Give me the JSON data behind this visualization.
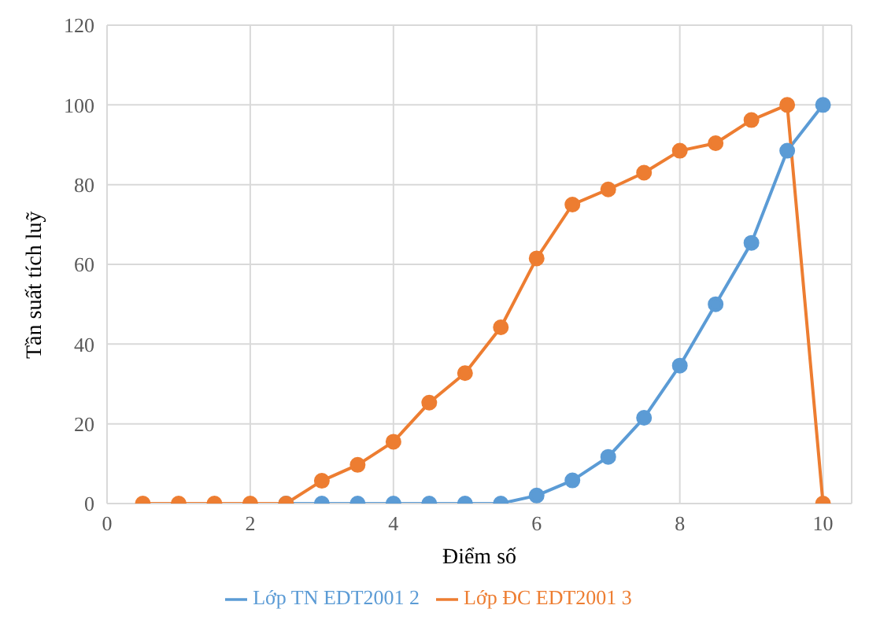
{
  "chart_data": {
    "type": "line",
    "xlabel": "Điểm số",
    "ylabel": "Tần suất tích luỹ",
    "x": [
      0.5,
      1,
      1.5,
      2,
      2.5,
      3,
      3.5,
      4,
      4.5,
      5,
      5.5,
      6,
      6.5,
      7,
      7.5,
      8,
      8.5,
      9,
      9.5,
      10
    ],
    "series": [
      {
        "name": "Lớp TN EDT2001 2",
        "color": "#5b9bd5",
        "values": [
          null,
          null,
          null,
          null,
          0,
          0,
          0,
          0,
          0,
          0,
          0,
          2,
          5.8,
          11.7,
          21.5,
          34.6,
          50,
          65.4,
          88.5,
          100
        ]
      },
      {
        "name": "Lớp ĐC EDT2001 3",
        "color": "#ed7d31",
        "values": [
          0,
          0,
          0,
          0,
          0,
          5.7,
          9.7,
          15.5,
          25.3,
          32.7,
          44.2,
          61.5,
          75,
          78.8,
          83,
          88.5,
          90.4,
          96.2,
          100,
          0
        ]
      }
    ],
    "xlim": [
      0,
      10.4
    ],
    "xticks": [
      0,
      2,
      4,
      6,
      8,
      10
    ],
    "ylim": [
      0,
      120
    ],
    "yticks": [
      0,
      20,
      40,
      60,
      80,
      100,
      120
    ],
    "grid": true,
    "legend": "bottom",
    "marker": "circle",
    "line_style": "solid"
  }
}
